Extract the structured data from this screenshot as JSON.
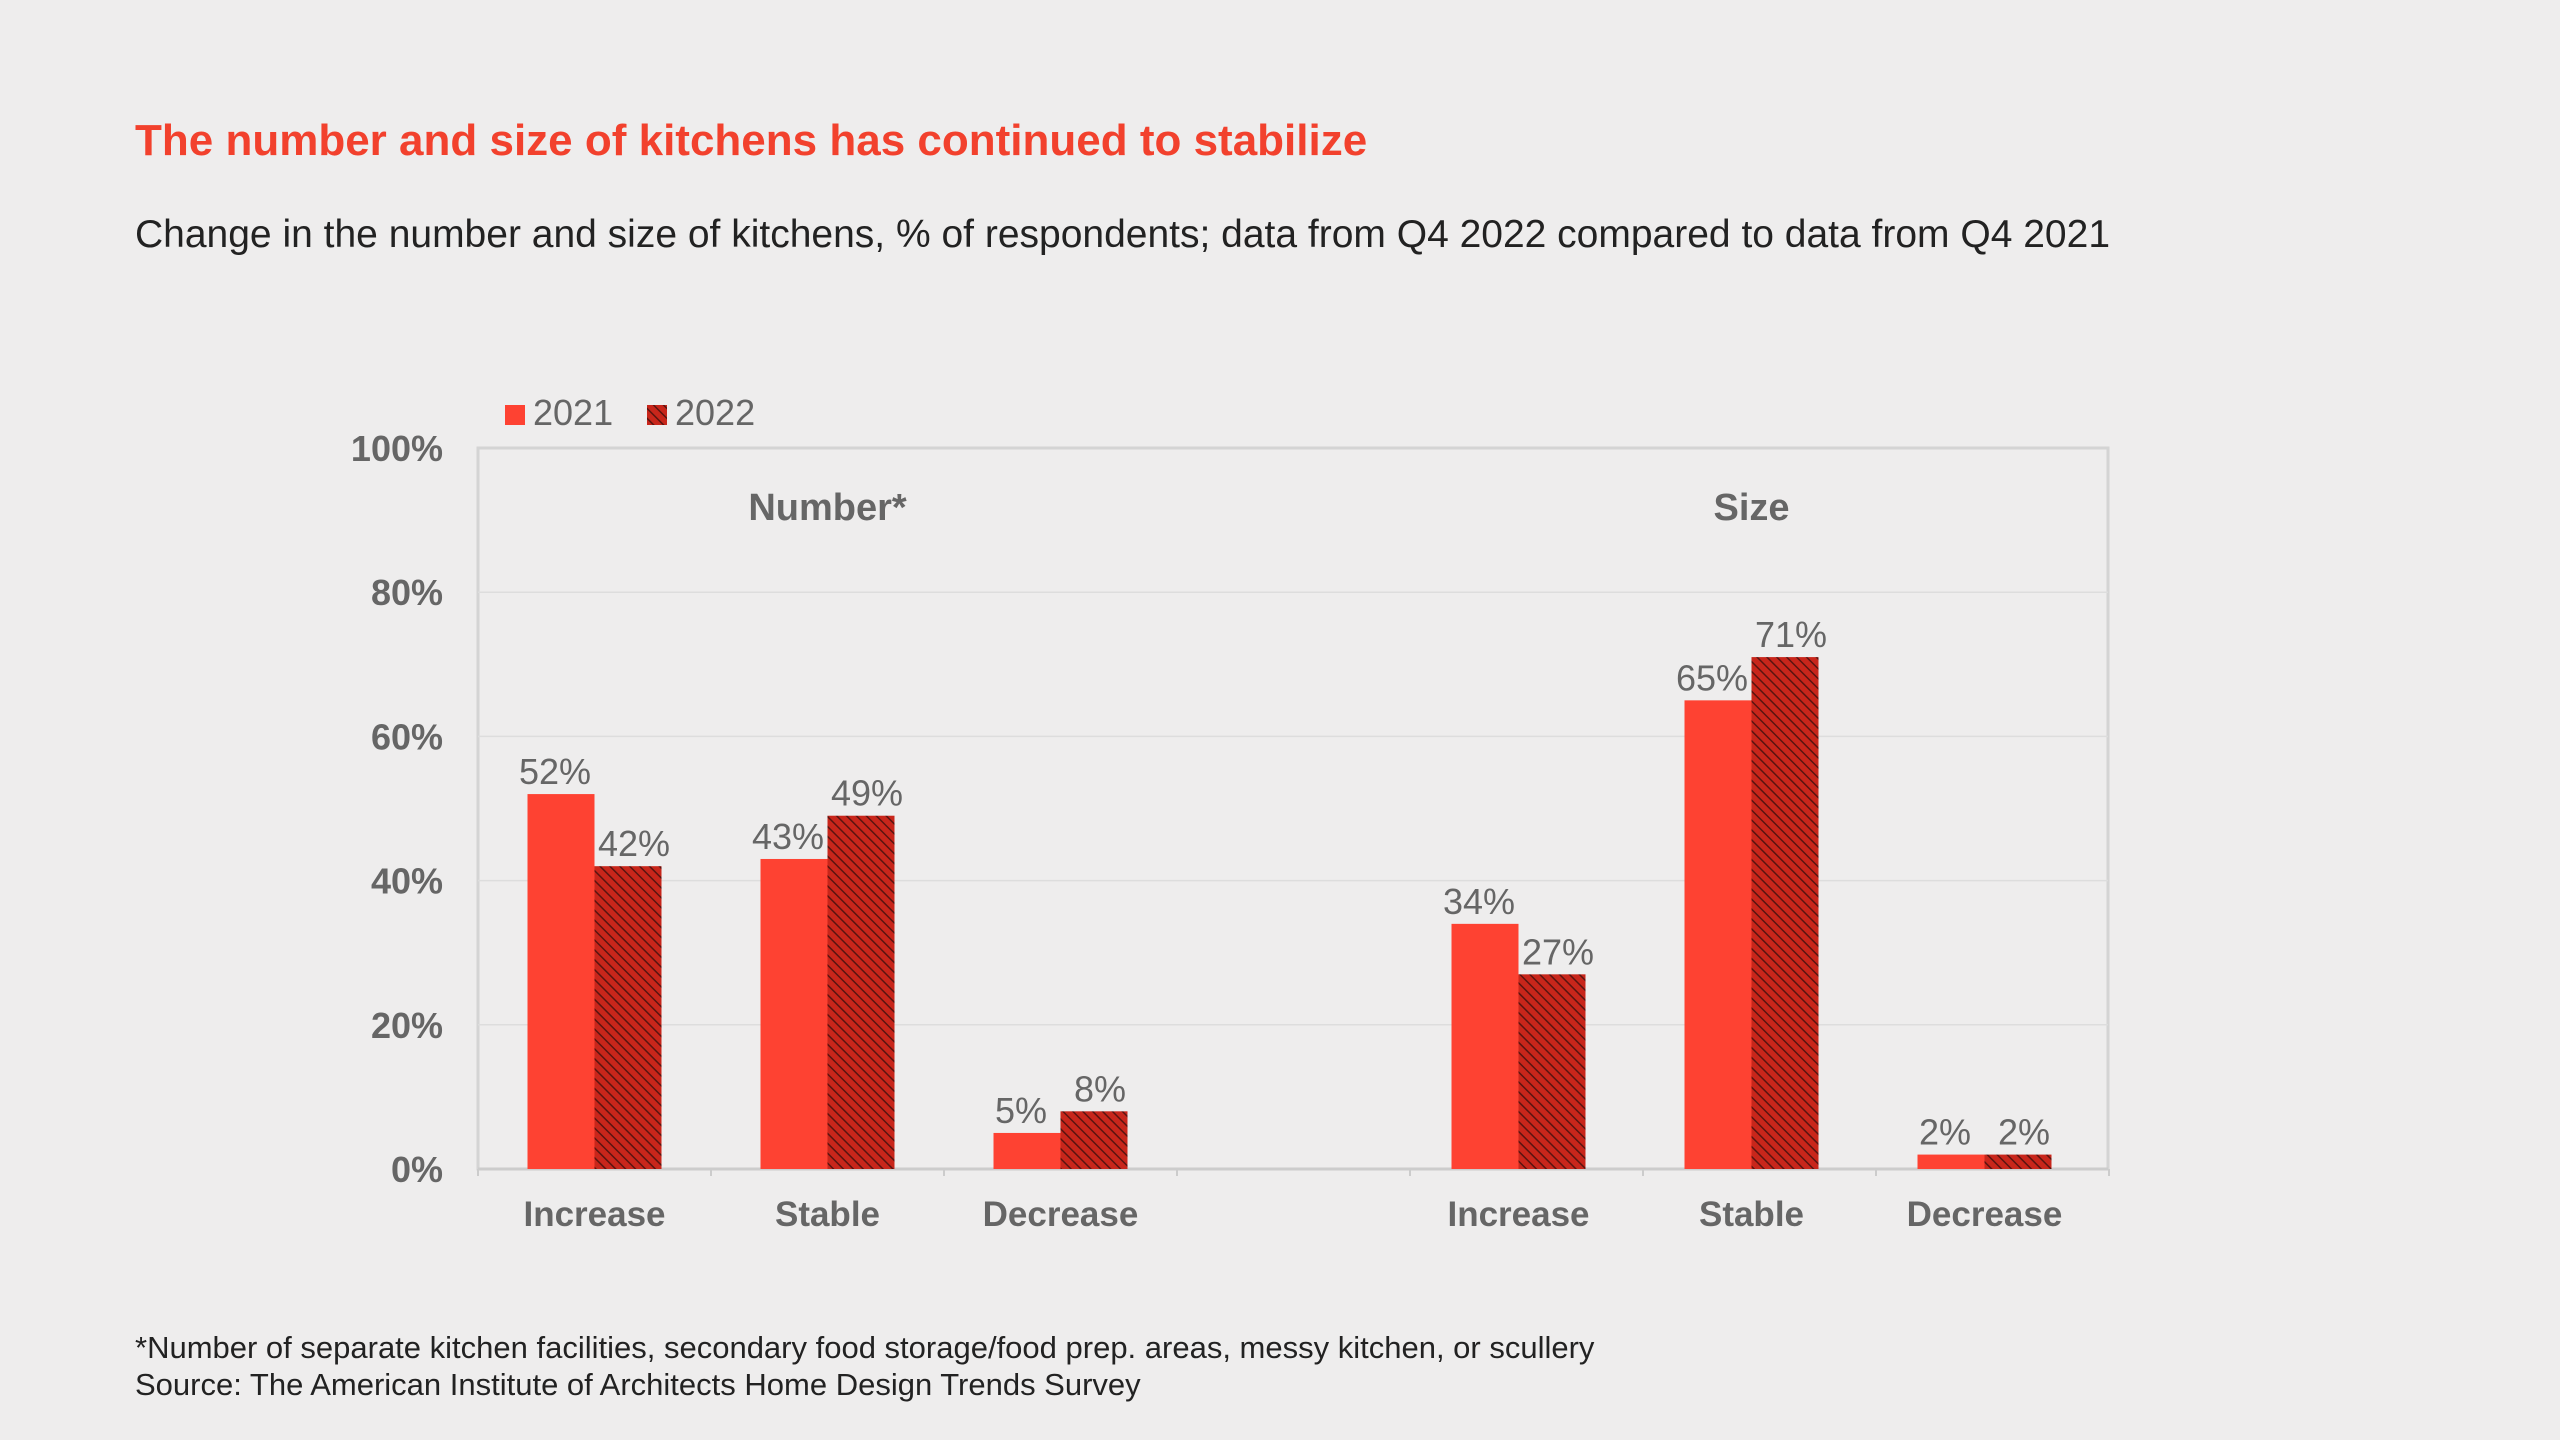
{
  "title": "The number and size of kitchens has continued to stabilize",
  "subtitle": "Change in the number and size of kitchens, % of respondents; data from Q4 2022 compared to data from Q4 2021",
  "footnotes": {
    "note": "*Number of separate kitchen facilities, secondary food storage/food prep. areas, messy kitchen, or scullery",
    "source": "Source: The American Institute of Architects Home Design Trends Survey"
  },
  "colors": {
    "series_2021": "#fe4232",
    "series_2022": "#c8261b",
    "hatch": "#5a1410",
    "axis_text": "#666666",
    "title": "#f2412d"
  },
  "chart_data": {
    "type": "bar",
    "ylim": [
      0,
      100
    ],
    "yticks": [
      "0%",
      "20%",
      "40%",
      "60%",
      "80%",
      "100%"
    ],
    "ytick_values": [
      0,
      20,
      40,
      60,
      80,
      100
    ],
    "grid": true,
    "legend_position": "top-left",
    "series": [
      {
        "name": "2021",
        "style": "solid"
      },
      {
        "name": "2022",
        "style": "hatched"
      }
    ],
    "groups": [
      {
        "label": "Number*",
        "categories": [
          "Increase",
          "Stable",
          "Decrease"
        ],
        "series_values": {
          "2021": [
            52,
            43,
            5
          ],
          "2022": [
            42,
            49,
            8
          ]
        },
        "data_labels": {
          "2021": [
            "52%",
            "43%",
            "5%"
          ],
          "2022": [
            "42%",
            "49%",
            "8%"
          ]
        }
      },
      {
        "label": "Size",
        "categories": [
          "Increase",
          "Stable",
          "Decrease"
        ],
        "series_values": {
          "2021": [
            34,
            65,
            2
          ],
          "2022": [
            27,
            71,
            2
          ]
        },
        "data_labels": {
          "2021": [
            "34%",
            "65%",
            "2%"
          ],
          "2022": [
            "27%",
            "71%",
            "2%"
          ]
        }
      }
    ]
  }
}
